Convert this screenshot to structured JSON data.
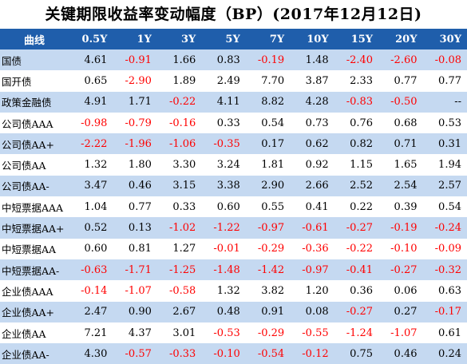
{
  "title": "关键期限收益率变动幅度（BP）(2017年12月12日)",
  "columns": [
    "曲线",
    "0.5Y",
    "1Y",
    "3Y",
    "5Y",
    "7Y",
    "10Y",
    "15Y",
    "20Y",
    "30Y"
  ],
  "rows": [
    {
      "name": "国债",
      "values": [
        "4.61",
        "-0.91",
        "1.66",
        "0.83",
        "-0.19",
        "1.48",
        "-2.40",
        "-2.60",
        "-0.08"
      ]
    },
    {
      "name": "国开债",
      "values": [
        "0.65",
        "-2.90",
        "1.89",
        "2.49",
        "7.70",
        "3.87",
        "2.33",
        "0.77",
        "0.77"
      ]
    },
    {
      "name": "政策金融债",
      "values": [
        "4.91",
        "1.71",
        "-0.22",
        "4.11",
        "8.82",
        "4.28",
        "-0.83",
        "-0.50",
        "--"
      ]
    },
    {
      "name": "公司债AAA",
      "values": [
        "-0.98",
        "-0.79",
        "-0.16",
        "0.33",
        "0.54",
        "0.73",
        "0.76",
        "0.68",
        "0.53"
      ]
    },
    {
      "name": "公司债AA+",
      "values": [
        "-2.22",
        "-1.96",
        "-1.06",
        "-0.35",
        "0.17",
        "0.62",
        "0.82",
        "0.71",
        "0.31"
      ]
    },
    {
      "name": "公司债AA",
      "values": [
        "1.32",
        "1.80",
        "3.30",
        "3.24",
        "1.81",
        "0.92",
        "1.15",
        "1.65",
        "1.94"
      ]
    },
    {
      "name": "公司债AA-",
      "values": [
        "3.47",
        "0.46",
        "3.15",
        "3.38",
        "2.90",
        "2.66",
        "2.52",
        "2.54",
        "2.57"
      ]
    },
    {
      "name": "中短票据AAA",
      "values": [
        "1.04",
        "0.77",
        "0.33",
        "0.60",
        "0.55",
        "0.41",
        "0.22",
        "0.39",
        "0.54"
      ]
    },
    {
      "name": "中短票据AA+",
      "values": [
        "0.52",
        "0.13",
        "-1.02",
        "-1.22",
        "-0.97",
        "-0.61",
        "-0.27",
        "-0.19",
        "-0.24"
      ]
    },
    {
      "name": "中短票据AA",
      "values": [
        "0.60",
        "0.81",
        "1.27",
        "-0.01",
        "-0.29",
        "-0.36",
        "-0.22",
        "-0.10",
        "-0.09"
      ]
    },
    {
      "name": "中短票据AA-",
      "values": [
        "-0.63",
        "-1.71",
        "-1.25",
        "-1.48",
        "-1.42",
        "-0.97",
        "-0.41",
        "-0.27",
        "-0.32"
      ]
    },
    {
      "name": "企业债AAA",
      "values": [
        "-0.14",
        "-1.07",
        "-0.58",
        "1.32",
        "3.82",
        "1.20",
        "0.36",
        "0.06",
        "0.63"
      ]
    },
    {
      "name": "企业债AA+",
      "values": [
        "2.47",
        "0.90",
        "2.67",
        "0.48",
        "0.91",
        "0.08",
        "-0.27",
        "0.27",
        "-0.17"
      ]
    },
    {
      "name": "企业债AA",
      "values": [
        "7.21",
        "4.37",
        "3.01",
        "-0.53",
        "-0.29",
        "-0.55",
        "-1.24",
        "-1.07",
        "0.61"
      ]
    },
    {
      "name": "企业债AA-",
      "values": [
        "4.30",
        "-0.57",
        "-0.33",
        "-0.10",
        "-0.54",
        "-0.12",
        "0.75",
        "0.46",
        "0.24"
      ]
    }
  ],
  "colors": {
    "header_bg": "#1f5eab",
    "header_text": "#ffffff",
    "band_bg": "#c5d9f1",
    "negative_text": "#ff0000"
  }
}
